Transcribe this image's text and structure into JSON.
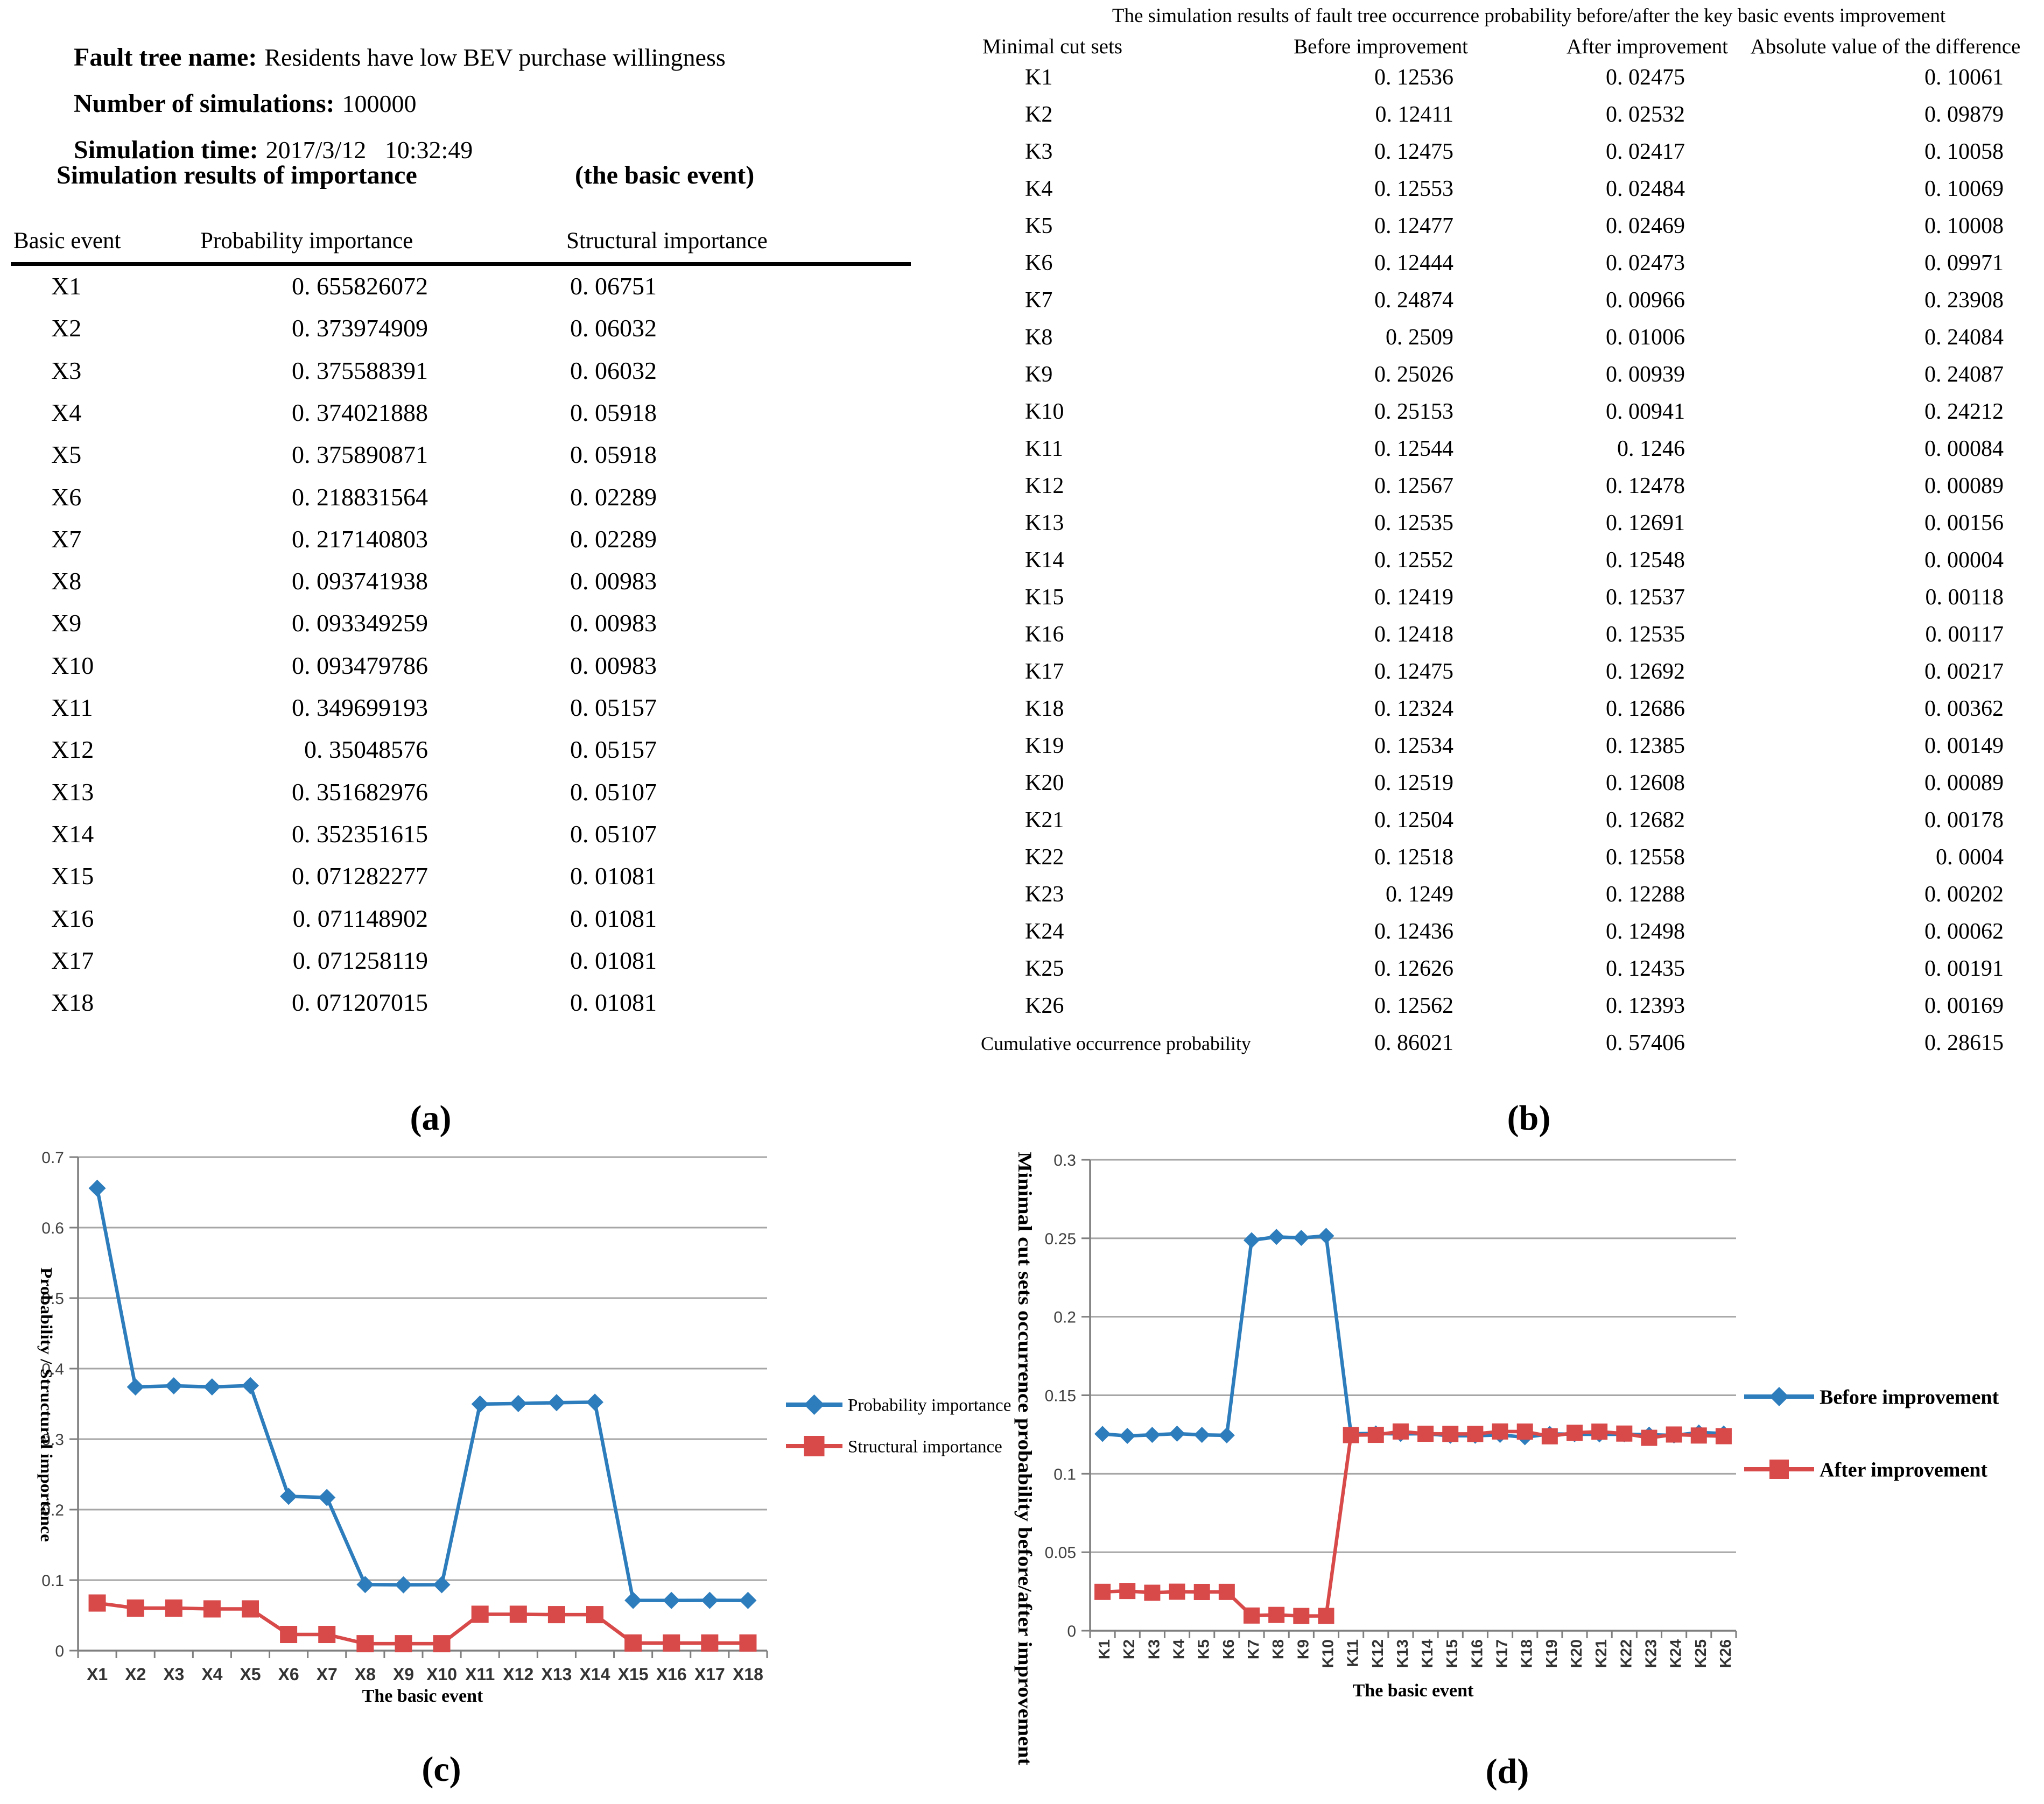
{
  "panel_a": {
    "fields": [
      {
        "label": "Fault tree name:",
        "value": "Residents have low BEV purchase willingness"
      },
      {
        "label": "Number of simulations:",
        "value": "100000"
      },
      {
        "label": "Simulation time:",
        "value": "2017/3/12   10:32:49"
      }
    ],
    "section_title": "Simulation results of importance",
    "section_title_suffix": "(the basic event)"
  },
  "captions": {
    "a": "(a)",
    "b": "(b)",
    "c": "(c)",
    "d": "(d)"
  },
  "colors": {
    "blue": "#2d7dbd",
    "red": "#d8494a",
    "gridline": "#a6a6a6",
    "axis": "#7f7f7f",
    "tick_text": "#404040",
    "x_label_text": "#333333"
  },
  "chart_data": [
    {
      "id": "table_a",
      "type": "table",
      "columns": [
        "Basic event",
        "Probability importance",
        "Structural importance"
      ],
      "rows": [
        [
          "X1",
          "0. 655826072",
          "0. 06751"
        ],
        [
          "X2",
          "0. 373974909",
          "0. 06032"
        ],
        [
          "X3",
          "0. 375588391",
          "0. 06032"
        ],
        [
          "X4",
          "0. 374021888",
          "0. 05918"
        ],
        [
          "X5",
          "0. 375890871",
          "0. 05918"
        ],
        [
          "X6",
          "0. 218831564",
          "0. 02289"
        ],
        [
          "X7",
          "0. 217140803",
          "0. 02289"
        ],
        [
          "X8",
          "0. 093741938",
          "0. 00983"
        ],
        [
          "X9",
          "0. 093349259",
          "0. 00983"
        ],
        [
          "X10",
          "0. 093479786",
          "0. 00983"
        ],
        [
          "X11",
          "0. 349699193",
          "0. 05157"
        ],
        [
          "X12",
          "0. 35048576",
          "0. 05157"
        ],
        [
          "X13",
          "0. 351682976",
          "0. 05107"
        ],
        [
          "X14",
          "0. 352351615",
          "0. 05107"
        ],
        [
          "X15",
          "0. 071282277",
          "0. 01081"
        ],
        [
          "X16",
          "0. 071148902",
          "0. 01081"
        ],
        [
          "X17",
          "0. 071258119",
          "0. 01081"
        ],
        [
          "X18",
          "0. 071207015",
          "0. 01081"
        ]
      ]
    },
    {
      "id": "table_b",
      "type": "table",
      "title": "The simulation results of fault tree occurrence probability before/after the key basic events improvement",
      "columns": [
        "Minimal cut sets",
        "Before improvement",
        "After improvement",
        "Absolute value of the difference"
      ],
      "rows": [
        [
          "K1",
          "0. 12536",
          "0. 02475",
          "0. 10061"
        ],
        [
          "K2",
          "0. 12411",
          "0. 02532",
          "0. 09879"
        ],
        [
          "K3",
          "0. 12475",
          "0. 02417",
          "0. 10058"
        ],
        [
          "K4",
          "0. 12553",
          "0. 02484",
          "0. 10069"
        ],
        [
          "K5",
          "0. 12477",
          "0. 02469",
          "0. 10008"
        ],
        [
          "K6",
          "0. 12444",
          "0. 02473",
          "0. 09971"
        ],
        [
          "K7",
          "0. 24874",
          "0. 00966",
          "0. 23908"
        ],
        [
          "K8",
          "0. 2509",
          "0. 01006",
          "0. 24084"
        ],
        [
          "K9",
          "0. 25026",
          "0. 00939",
          "0. 24087"
        ],
        [
          "K10",
          "0. 25153",
          "0. 00941",
          "0. 24212"
        ],
        [
          "K11",
          "0. 12544",
          "0. 1246",
          "0. 00084"
        ],
        [
          "K12",
          "0. 12567",
          "0. 12478",
          "0. 00089"
        ],
        [
          "K13",
          "0. 12535",
          "0. 12691",
          "0. 00156"
        ],
        [
          "K14",
          "0. 12552",
          "0. 12548",
          "0. 00004"
        ],
        [
          "K15",
          "0. 12419",
          "0. 12537",
          "0. 00118"
        ],
        [
          "K16",
          "0. 12418",
          "0. 12535",
          "0. 00117"
        ],
        [
          "K17",
          "0. 12475",
          "0. 12692",
          "0. 00217"
        ],
        [
          "K18",
          "0. 12324",
          "0. 12686",
          "0. 00362"
        ],
        [
          "K19",
          "0. 12534",
          "0. 12385",
          "0. 00149"
        ],
        [
          "K20",
          "0. 12519",
          "0. 12608",
          "0. 00089"
        ],
        [
          "K21",
          "0. 12504",
          "0. 12682",
          "0. 00178"
        ],
        [
          "K22",
          "0. 12518",
          "0. 12558",
          "0. 0004"
        ],
        [
          "K23",
          "0. 1249",
          "0. 12288",
          "0. 00202"
        ],
        [
          "K24",
          "0. 12436",
          "0. 12498",
          "0. 00062"
        ],
        [
          "K25",
          "0. 12626",
          "0. 12435",
          "0. 00191"
        ],
        [
          "K26",
          "0. 12562",
          "0. 12393",
          "0. 00169"
        ],
        [
          "Cumulative occurrence probability",
          "0. 86021",
          "0. 57406",
          "0. 28615"
        ]
      ]
    },
    {
      "id": "chart_c",
      "type": "line",
      "categories": [
        "X1",
        "X2",
        "X3",
        "X4",
        "X5",
        "X6",
        "X7",
        "X8",
        "X9",
        "X10",
        "X11",
        "X12",
        "X13",
        "X14",
        "X15",
        "X16",
        "X17",
        "X18"
      ],
      "series": [
        {
          "name": "Probability importance",
          "color": "#2d7dbd",
          "marker": "diamond",
          "values": [
            0.655826072,
            0.373974909,
            0.375588391,
            0.374021888,
            0.375890871,
            0.218831564,
            0.217140803,
            0.093741938,
            0.093349259,
            0.093479786,
            0.349699193,
            0.35048576,
            0.351682976,
            0.352351615,
            0.071282277,
            0.071148902,
            0.071258119,
            0.071207015
          ]
        },
        {
          "name": "Structural importance",
          "color": "#d8494a",
          "marker": "square",
          "values": [
            0.06751,
            0.06032,
            0.06032,
            0.05918,
            0.05918,
            0.02289,
            0.02289,
            0.00983,
            0.00983,
            0.00983,
            0.05157,
            0.05157,
            0.05107,
            0.05107,
            0.01081,
            0.01081,
            0.01081,
            0.01081
          ]
        }
      ],
      "ylabel": "Probability / Structural importance",
      "xlabel": "The basic event",
      "ylim": [
        0,
        0.7
      ],
      "ytick_step": 0.1,
      "grid": true,
      "legend_position": "right",
      "x_label_rotation": 0
    },
    {
      "id": "chart_d",
      "type": "line",
      "categories": [
        "K1",
        "K2",
        "K3",
        "K4",
        "K5",
        "K6",
        "K7",
        "K8",
        "K9",
        "K10",
        "K11",
        "K12",
        "K13",
        "K14",
        "K15",
        "K16",
        "K17",
        "K18",
        "K19",
        "K20",
        "K21",
        "K22",
        "K23",
        "K24",
        "K25",
        "K26"
      ],
      "series": [
        {
          "name": "Before improvement",
          "color": "#2d7dbd",
          "marker": "diamond",
          "values": [
            0.12536,
            0.12411,
            0.12475,
            0.12553,
            0.12477,
            0.12444,
            0.24874,
            0.2509,
            0.25026,
            0.25153,
            0.12544,
            0.12567,
            0.12535,
            0.12552,
            0.12419,
            0.12418,
            0.12475,
            0.12324,
            0.12534,
            0.12519,
            0.12504,
            0.12518,
            0.1249,
            0.12436,
            0.12626,
            0.12562
          ]
        },
        {
          "name": "After improvement",
          "color": "#d8494a",
          "marker": "square",
          "values": [
            0.02475,
            0.02532,
            0.02417,
            0.02484,
            0.02469,
            0.02473,
            0.00966,
            0.01006,
            0.00939,
            0.00941,
            0.1246,
            0.12478,
            0.12691,
            0.12548,
            0.12537,
            0.12535,
            0.12692,
            0.12686,
            0.12385,
            0.12608,
            0.12682,
            0.12558,
            0.12288,
            0.12498,
            0.12435,
            0.12393
          ]
        }
      ],
      "ylabel": "Minimal cut sets occurrence probability before/after improvement",
      "xlabel": "The basic event",
      "ylim": [
        0,
        0.3
      ],
      "ytick_step": 0.05,
      "grid": true,
      "legend_position": "right",
      "x_label_rotation": 90
    }
  ]
}
